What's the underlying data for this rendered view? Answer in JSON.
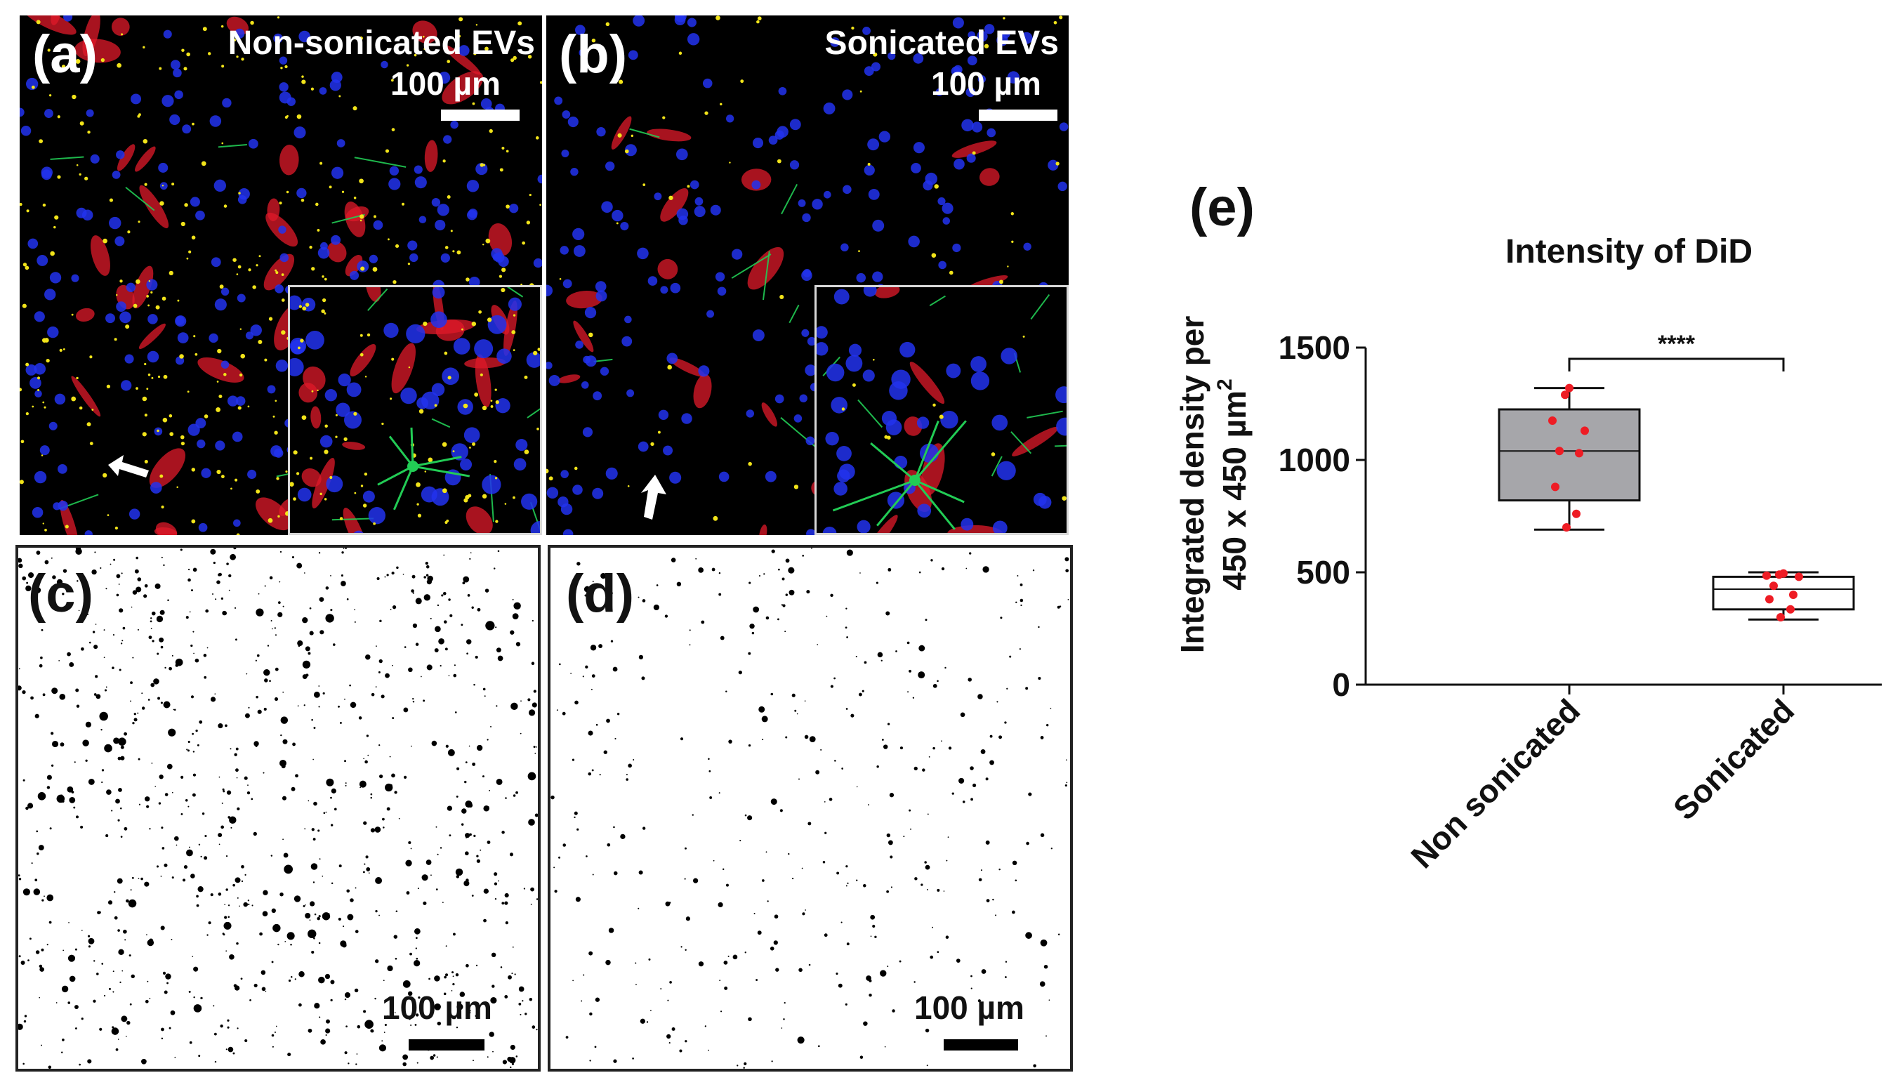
{
  "panels": {
    "a": {
      "label": "(a)",
      "title": "Non-sonicated EVs",
      "scale": "100 µm"
    },
    "b": {
      "label": "(b)",
      "title": "Sonicated EVs",
      "scale": "100 µm"
    },
    "c": {
      "label": "(c)",
      "scale": "100 µm"
    },
    "d": {
      "label": "(d)",
      "scale": "100 µm"
    },
    "e": {
      "label": "(e)"
    }
  },
  "colors": {
    "nuclei": "#2233ee",
    "astrocytes": "#e01a2a",
    "neurons": "#22cc55",
    "evs": "#f2e41a",
    "box_fill_non_sonicated": "#a6a6aa",
    "box_fill_sonicated": "#ffffff",
    "points": "#ee1c24"
  },
  "chart_data": {
    "type": "box",
    "title": "Intensity of DiD",
    "ylabel_line1": "Integrated density per",
    "ylabel_line2": "450 x 450 µm",
    "ylabel_sup": "2",
    "ylim": [
      0,
      1500
    ],
    "yticks": [
      "0",
      "500",
      "1000",
      "1500"
    ],
    "categories": [
      "Non sonicated",
      "Sonicated"
    ],
    "significance": "****",
    "series": [
      {
        "category": "Non sonicated",
        "min": 690,
        "q1": 820,
        "median": 1040,
        "q3": 1225,
        "max": 1320,
        "points": [
          1320,
          1290,
          1175,
          1130,
          1040,
          1030,
          880,
          760,
          700
        ]
      },
      {
        "category": "Sonicated",
        "min": 290,
        "q1": 335,
        "median": 425,
        "q3": 480,
        "max": 500,
        "points": [
          495,
          490,
          485,
          480,
          440,
          400,
          380,
          335,
          300
        ]
      }
    ]
  }
}
